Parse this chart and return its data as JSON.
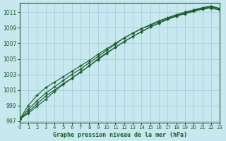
{
  "title": "Graphe pression niveau de la mer (hPa)",
  "background_color": "#c8e8f0",
  "grid_color": "#a0c8d8",
  "line_color": "#1a5c2a",
  "xlim": [
    0,
    23
  ],
  "ylim": [
    996.8,
    1012.2
  ],
  "yticks": [
    997,
    999,
    1001,
    1003,
    1005,
    1007,
    1009,
    1011
  ],
  "xticks": [
    0,
    1,
    2,
    3,
    4,
    5,
    6,
    7,
    8,
    9,
    10,
    11,
    12,
    13,
    14,
    15,
    16,
    17,
    18,
    19,
    20,
    21,
    22,
    23
  ],
  "series": [
    [
      997.2,
      998.2,
      999.2,
      1000.2,
      1001.0,
      1001.8,
      1002.5,
      1003.3,
      1004.1,
      1004.9,
      1005.7,
      1006.5,
      1007.2,
      1007.9,
      1008.5,
      1009.1,
      1009.6,
      1010.1,
      1010.5,
      1010.8,
      1011.1,
      1011.4,
      1011.5,
      1011.3
    ],
    [
      997.2,
      998.0,
      998.9,
      999.8,
      1000.8,
      1001.7,
      1002.5,
      1003.3,
      1004.1,
      1005.0,
      1005.8,
      1006.5,
      1007.2,
      1007.9,
      1008.5,
      1009.1,
      1009.6,
      1010.1,
      1010.5,
      1010.9,
      1011.2,
      1011.5,
      1011.7,
      1011.4
    ],
    [
      997.2,
      998.5,
      999.6,
      1000.6,
      1001.4,
      1002.2,
      1003.0,
      1003.7,
      1004.5,
      1005.3,
      1006.1,
      1006.9,
      1007.7,
      1008.3,
      1008.9,
      1009.4,
      1009.9,
      1010.3,
      1010.7,
      1011.0,
      1011.3,
      1011.5,
      1011.7,
      1011.4
    ],
    [
      997.2,
      999.0,
      1000.3,
      1001.3,
      1002.0,
      1002.7,
      1003.4,
      1004.1,
      1004.8,
      1005.6,
      1006.3,
      1007.0,
      1007.7,
      1008.3,
      1008.9,
      1009.3,
      1009.8,
      1010.2,
      1010.6,
      1011.0,
      1011.3,
      1011.6,
      1011.8,
      1011.5
    ]
  ]
}
